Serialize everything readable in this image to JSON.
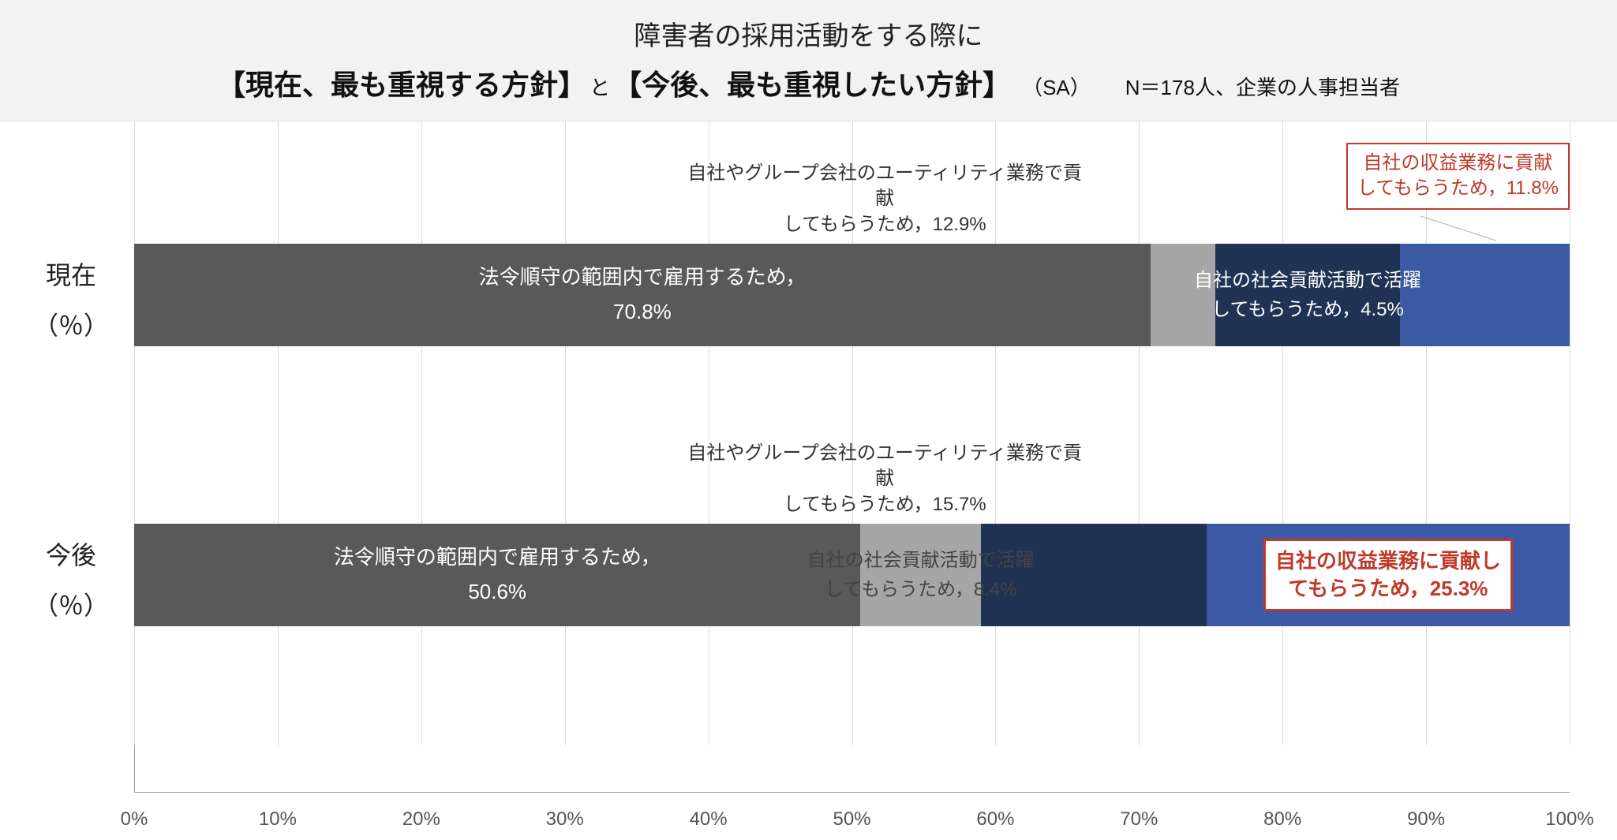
{
  "header": {
    "line1": "障害者の採用活動をする際に",
    "bracket1": "【現在、最も重視する方針】",
    "connector": "と",
    "bracket2": "【今後、最も重視したい方針】",
    "sa": "（SA）",
    "note": "N＝178人、企業の人事担当者"
  },
  "chart": {
    "type": "stacked-horizontal-bar",
    "xlim": [
      0,
      100
    ],
    "xtick_step": 10,
    "xtick_suffix": "%",
    "background_color": "#ffffff",
    "grid_color": "#dcdcdc",
    "categories": [
      {
        "key": "current",
        "label_line1": "現在",
        "label_line2": "（％）",
        "segments": [
          {
            "label_l1": "法令順守の範囲内で雇用するため，",
            "label_l2": "70.8%",
            "value": 70.8,
            "color": "#595959",
            "text_color": "#ffffff"
          },
          {
            "value": 4.5,
            "color": "#a6a6a6"
          },
          {
            "value": 12.9,
            "color": "#203354",
            "text_color": "#ffffff",
            "overlay_l1": "自社の社会貢献活動で活躍",
            "overlay_l2": "してもらうため，4.5%"
          },
          {
            "value": 11.8,
            "color": "#3b5aa3"
          }
        ],
        "annotations": {
          "utility": {
            "l1": "自社やグループ会社のユーティリティ業務で貢献",
            "l2": "してもらうため，12.9%"
          },
          "revenue": {
            "l1": "自社の収益業務に貢献",
            "l2": "してもらうため，11.8%"
          }
        }
      },
      {
        "key": "future",
        "label_line1": "今後",
        "label_line2": "（％）",
        "segments": [
          {
            "label_l1": "法令順守の範囲内で雇用するため，",
            "label_l2": "50.6%",
            "value": 50.6,
            "color": "#595959",
            "text_color": "#ffffff"
          },
          {
            "value": 8.4,
            "color": "#a6a6a6",
            "overlay_l1": "自社の社会貢献活動で活躍",
            "overlay_l2": "してもらうため，8.4%",
            "overlay_color": "#444"
          },
          {
            "value": 15.7,
            "color": "#203354"
          },
          {
            "value": 25.3,
            "color": "#3b5aa3",
            "callout_l1": "自社の収益業務に貢献し",
            "callout_l2": "てもらうため，25.3%"
          }
        ],
        "annotations": {
          "utility": {
            "l1": "自社やグループ会社のユーティリティ業務で貢献",
            "l2": "してもらうため，15.7%"
          }
        }
      }
    ]
  }
}
